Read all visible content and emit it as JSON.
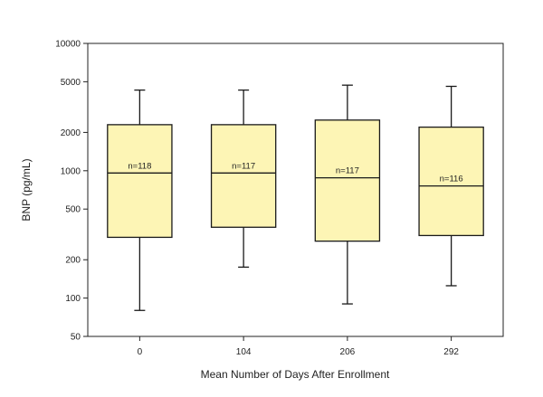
{
  "chart_data": {
    "type": "box",
    "title": "",
    "xlabel": "Mean Number of Days After Enrollment",
    "ylabel": "BNP (pg/mL)",
    "y_scale": "log",
    "ylim": [
      50,
      10000
    ],
    "y_ticks": [
      50,
      100,
      200,
      500,
      1000,
      2000,
      5000,
      10000
    ],
    "y_tick_labels": [
      "50",
      "100",
      "200",
      "500",
      "1000",
      "2000",
      "5000",
      "10000"
    ],
    "categories": [
      "0",
      "104",
      "206",
      "292"
    ],
    "boxes": [
      {
        "category": "0",
        "label": "n=118",
        "whisker_low": 80,
        "q1": 300,
        "median": 960,
        "q3": 2300,
        "whisker_high": 4300
      },
      {
        "category": "104",
        "label": "n=117",
        "whisker_low": 175,
        "q1": 360,
        "median": 960,
        "q3": 2300,
        "whisker_high": 4300
      },
      {
        "category": "206",
        "label": "n=117",
        "whisker_low": 90,
        "q1": 280,
        "median": 880,
        "q3": 2500,
        "whisker_high": 4700
      },
      {
        "category": "292",
        "label": "n=116",
        "whisker_low": 125,
        "q1": 310,
        "median": 760,
        "q3": 2200,
        "whisker_high": 4600
      }
    ],
    "grid": false,
    "legend": "none",
    "colors": {
      "box_fill": "#fdf5b5",
      "stroke": "#1a1a1a"
    }
  }
}
